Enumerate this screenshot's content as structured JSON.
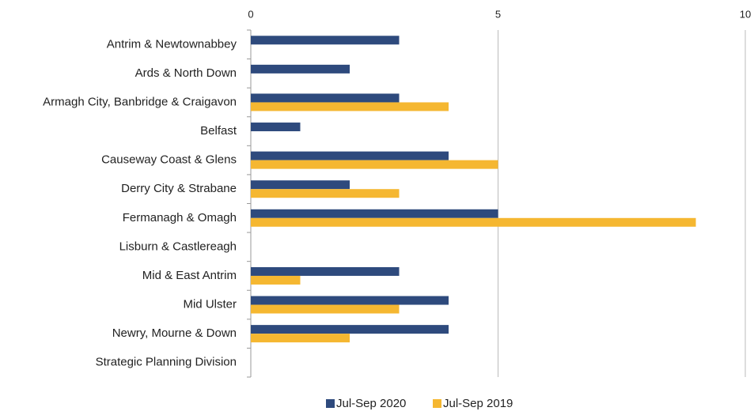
{
  "chart_data": {
    "type": "hbar",
    "categories": [
      "Antrim & Newtownabbey",
      "Ards & North Down",
      "Armagh City, Banbridge & Craigavon",
      "Belfast",
      "Causeway Coast & Glens",
      "Derry City & Strabane",
      "Fermanagh & Omagh",
      "Lisburn & Castlereagh",
      "Mid & East Antrim",
      "Mid Ulster",
      "Newry, Mourne & Down",
      "Strategic Planning Division"
    ],
    "series": [
      {
        "name": "Jul-Sep 2020",
        "color": "#2e4a7d",
        "values": [
          3,
          2,
          3,
          1,
          4,
          2,
          5,
          0,
          3,
          4,
          4,
          0
        ]
      },
      {
        "name": "Jul-Sep 2019",
        "color": "#f5b731",
        "values": [
          0,
          0,
          4,
          0,
          5,
          3,
          9,
          0,
          1,
          3,
          2,
          0
        ]
      }
    ],
    "xlim": [
      0,
      10
    ],
    "xticks": [
      0,
      5,
      10
    ],
    "grid": true,
    "legend": "bottom"
  }
}
